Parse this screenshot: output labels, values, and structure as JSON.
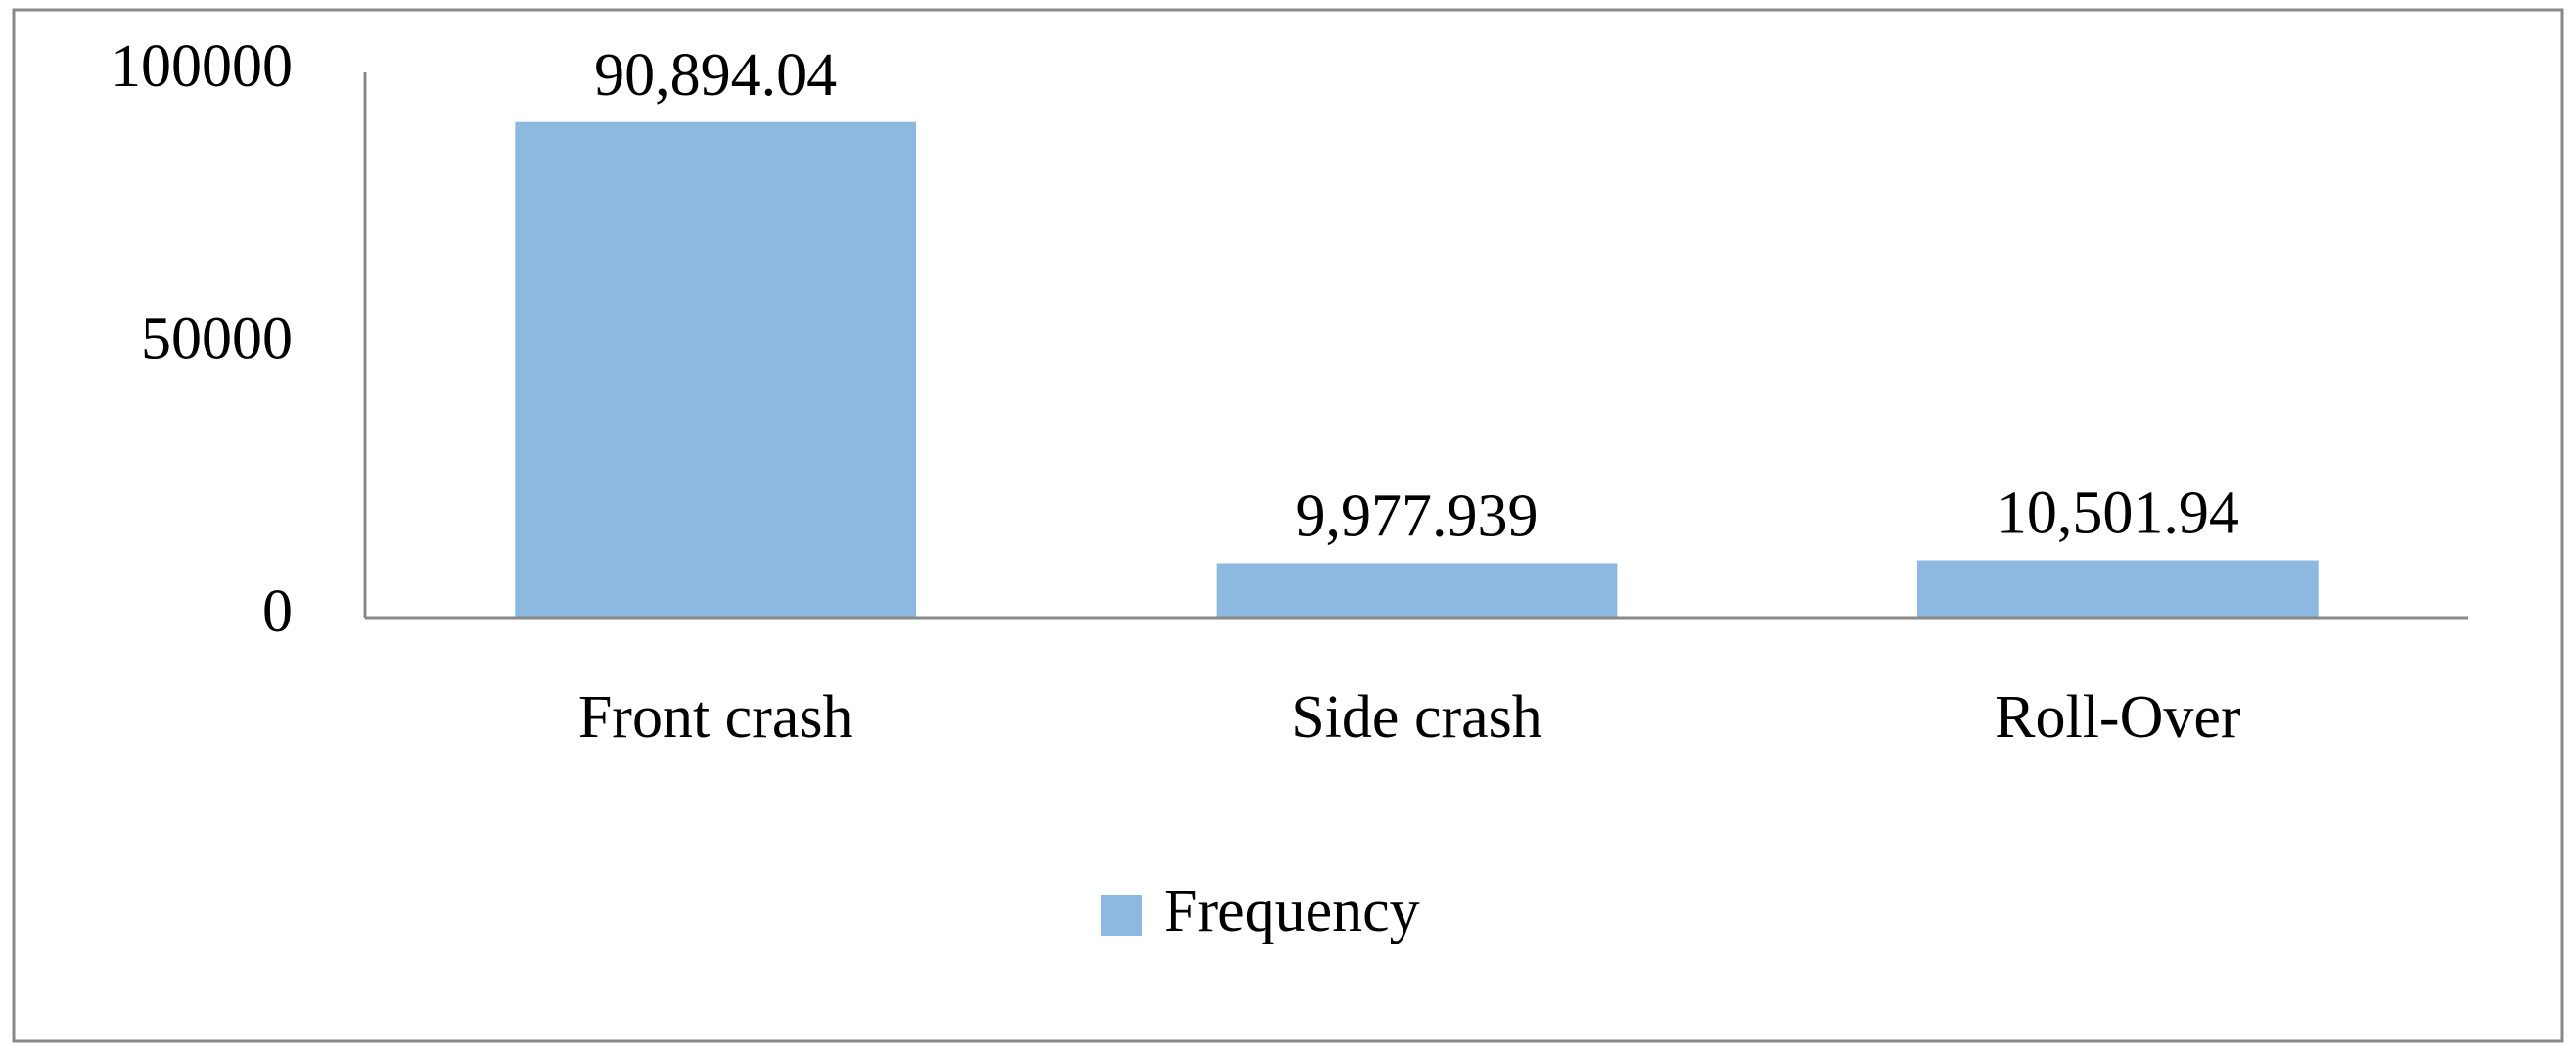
{
  "chart_data": {
    "type": "bar",
    "categories": [
      "Front crash",
      "Side crash",
      "Roll-Over"
    ],
    "series": [
      {
        "name": "Frequency",
        "color": "#8db9e0",
        "values": [
          90894.04,
          9977.939,
          10501.94
        ],
        "value_labels": [
          "90,894.04",
          "9,977.939",
          "10,501.94"
        ]
      }
    ],
    "ylim": [
      0,
      100000
    ],
    "yticks": [
      0,
      50000,
      100000
    ],
    "grid": false,
    "legend": "bottom"
  }
}
